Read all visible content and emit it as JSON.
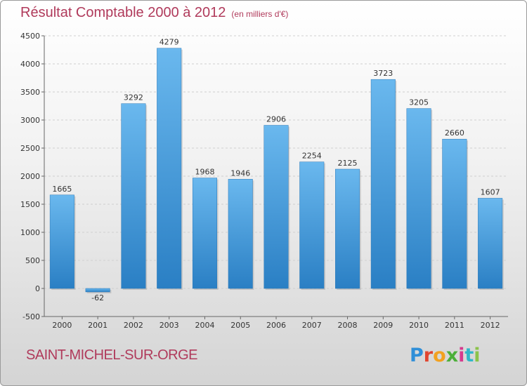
{
  "header": {
    "title": "Résultat Comptable 2000 à 2012",
    "subtitle": "(en milliers d'€)"
  },
  "footer": {
    "city": "SAINT-MICHEL-SUR-ORGE",
    "logo": "Proxiti"
  },
  "colors": {
    "bar_top": "#6ab8ee",
    "bar_bottom": "#2a7fc4",
    "title": "#b03a5b"
  },
  "chart_data": {
    "type": "bar",
    "title": "Résultat Comptable 2000 à 2012",
    "subtitle": "(en milliers d'€)",
    "xlabel": "",
    "ylabel": "",
    "categories": [
      "2000",
      "2001",
      "2002",
      "2003",
      "2004",
      "2005",
      "2006",
      "2007",
      "2008",
      "2009",
      "2010",
      "2011",
      "2012"
    ],
    "values": [
      1665,
      -62,
      3292,
      4279,
      1968,
      1946,
      2906,
      2254,
      2125,
      3723,
      3205,
      2660,
      1607
    ],
    "ylim": [
      -500,
      4500
    ],
    "yticks": [
      -500,
      0,
      500,
      1000,
      1500,
      2000,
      2500,
      3000,
      3500,
      4000,
      4500
    ],
    "grid": true,
    "legend": "none"
  }
}
